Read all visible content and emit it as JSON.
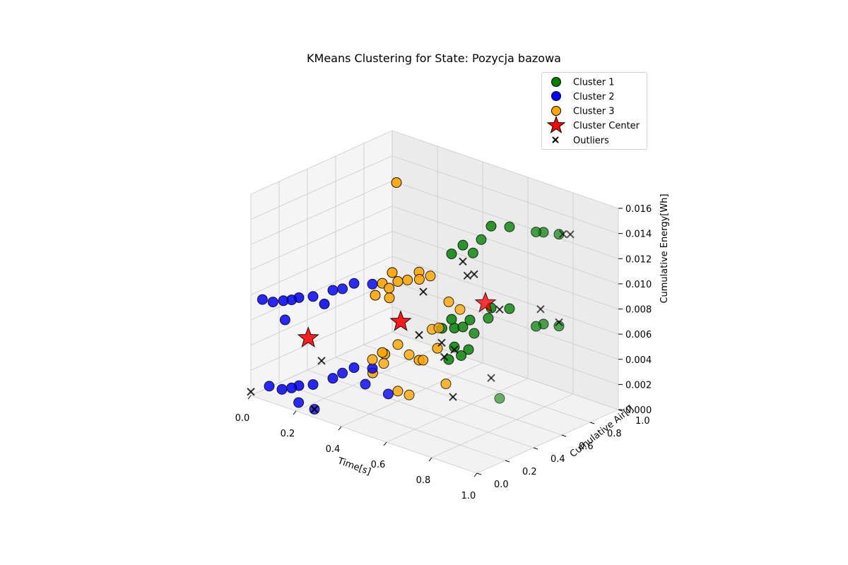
{
  "chart_data": {
    "type": "scatter",
    "projection": "3d",
    "title": "KMeans Clustering for State: Pozycja bazowa",
    "xlabel": "Time[s]",
    "ylabel": "Cumulative Air[l]",
    "zlabel": "Cumulative Energy[Wh]",
    "xlim": [
      0.0,
      1.0
    ],
    "ylim": [
      0.0,
      1.0
    ],
    "zlim": [
      0.0,
      0.016
    ],
    "xticks": [
      "0.0",
      "0.2",
      "0.4",
      "0.6",
      "0.8",
      "1.0"
    ],
    "yticks": [
      "0.0",
      "0.2",
      "0.4",
      "0.6",
      "0.8",
      "1.0"
    ],
    "zticks": [
      "0.000",
      "0.002",
      "0.004",
      "0.006",
      "0.008",
      "0.010",
      "0.012",
      "0.014",
      "0.016"
    ],
    "grid": true,
    "legend_position": "top-right",
    "series": [
      {
        "name": "Cluster 1",
        "marker": "circle",
        "color": "#008000",
        "points": [
          [
            0.75,
            0.98,
            0.0125
          ],
          [
            0.7,
            0.95,
            0.0125
          ],
          [
            0.68,
            0.93,
            0.0125
          ],
          [
            0.55,
            0.95,
            0.012
          ],
          [
            0.5,
            0.9,
            0.012
          ],
          [
            0.55,
            0.75,
            0.012
          ],
          [
            0.5,
            0.7,
            0.0115
          ],
          [
            0.52,
            0.74,
            0.0108
          ],
          [
            0.45,
            0.7,
            0.0105
          ],
          [
            0.75,
            0.98,
            0.0052
          ],
          [
            0.7,
            0.95,
            0.0052
          ],
          [
            0.68,
            0.93,
            0.005
          ],
          [
            0.55,
            0.95,
            0.0055
          ],
          [
            0.5,
            0.9,
            0.0055
          ],
          [
            0.55,
            0.8,
            0.0055
          ],
          [
            0.5,
            0.75,
            0.0053
          ],
          [
            0.45,
            0.7,
            0.0053
          ],
          [
            0.5,
            0.7,
            0.005
          ],
          [
            0.55,
            0.7,
            0.0048
          ],
          [
            0.45,
            0.72,
            0.0045
          ],
          [
            0.42,
            0.68,
            0.0045
          ],
          [
            0.45,
            0.72,
            0.003
          ],
          [
            0.5,
            0.74,
            0.003
          ],
          [
            0.48,
            0.72,
            0.0025
          ],
          [
            0.45,
            0.68,
            0.0022
          ],
          [
            0.85,
            0.4,
            0.003
          ]
        ]
      },
      {
        "name": "Cluster 2",
        "marker": "circle",
        "color": "#0000ff",
        "points": [
          [
            0.02,
            0.05,
            0.0075
          ],
          [
            0.06,
            0.06,
            0.0075
          ],
          [
            0.1,
            0.07,
            0.0078
          ],
          [
            0.13,
            0.08,
            0.008
          ],
          [
            0.15,
            0.1,
            0.0082
          ],
          [
            0.2,
            0.12,
            0.0085
          ],
          [
            0.25,
            0.18,
            0.009
          ],
          [
            0.28,
            0.2,
            0.0092
          ],
          [
            0.3,
            0.25,
            0.0095
          ],
          [
            0.35,
            0.3,
            0.0095
          ],
          [
            0.12,
            0.05,
            0.0065
          ],
          [
            0.2,
            0.2,
            0.0075
          ],
          [
            0.05,
            0.05,
            0.0008
          ],
          [
            0.1,
            0.06,
            0.0008
          ],
          [
            0.13,
            0.08,
            0.001
          ],
          [
            0.15,
            0.1,
            0.0012
          ],
          [
            0.2,
            0.12,
            0.0015
          ],
          [
            0.25,
            0.18,
            0.002
          ],
          [
            0.28,
            0.2,
            0.0025
          ],
          [
            0.3,
            0.25,
            0.0028
          ],
          [
            0.35,
            0.3,
            0.0028
          ],
          [
            0.18,
            0.05,
            0.0003
          ],
          [
            0.25,
            0.05,
            0.0002
          ],
          [
            0.35,
            0.25,
            0.0018
          ],
          [
            0.42,
            0.3,
            0.0012
          ]
        ]
      },
      {
        "name": "Cluster 3",
        "marker": "circle",
        "color": "#ffa500",
        "points": [
          [
            0.3,
            0.55,
            0.016
          ],
          [
            0.4,
            0.55,
            0.0095
          ],
          [
            0.45,
            0.55,
            0.0095
          ],
          [
            0.42,
            0.52,
            0.0092
          ],
          [
            0.38,
            0.5,
            0.009
          ],
          [
            0.35,
            0.48,
            0.0088
          ],
          [
            0.3,
            0.52,
            0.009
          ],
          [
            0.3,
            0.45,
            0.0085
          ],
          [
            0.33,
            0.45,
            0.0083
          ],
          [
            0.3,
            0.4,
            0.0078
          ],
          [
            0.35,
            0.42,
            0.0078
          ],
          [
            0.5,
            0.6,
            0.0075
          ],
          [
            0.55,
            0.6,
            0.0072
          ],
          [
            0.55,
            0.45,
            0.0065
          ],
          [
            0.52,
            0.45,
            0.0062
          ],
          [
            0.4,
            0.4,
            0.0045
          ],
          [
            0.45,
            0.4,
            0.004
          ],
          [
            0.4,
            0.3,
            0.0035
          ],
          [
            0.35,
            0.3,
            0.0035
          ],
          [
            0.4,
            0.55,
            0.0025
          ],
          [
            0.48,
            0.45,
            0.0035
          ],
          [
            0.3,
            0.45,
            0.003
          ],
          [
            0.28,
            0.5,
            0.0025
          ],
          [
            0.45,
            0.6,
            0.0035
          ],
          [
            0.4,
            0.4,
            0.0008
          ],
          [
            0.45,
            0.4,
            0.0008
          ],
          [
            0.32,
            0.35,
            0.002
          ],
          [
            0.55,
            0.5,
            0.0018
          ]
        ]
      },
      {
        "name": "Cluster Center",
        "marker": "star",
        "color": "#ff0000",
        "points": [
          [
            0.55,
            0.78,
            0.0068
          ],
          [
            0.35,
            0.5,
            0.0055
          ],
          [
            0.16,
            0.15,
            0.0048
          ]
        ]
      },
      {
        "name": "Outliers",
        "marker": "x",
        "color": "#000000",
        "points": [
          [
            0.8,
            0.98,
            0.0128
          ],
          [
            0.78,
            0.96,
            0.0128
          ],
          [
            0.75,
            0.98,
            0.0055
          ],
          [
            0.55,
            0.7,
            0.0095
          ],
          [
            0.52,
            0.7,
            0.0092
          ],
          [
            0.6,
            0.8,
            0.0065
          ],
          [
            0.75,
            0.85,
            0.0072
          ],
          [
            0.5,
            0.7,
            0.0102
          ],
          [
            0.45,
            0.5,
            0.0085
          ],
          [
            0.5,
            0.55,
            0.0045
          ],
          [
            0.4,
            0.55,
            0.0045
          ],
          [
            0.48,
            0.6,
            0.003
          ],
          [
            0.5,
            0.64,
            0.0035
          ],
          [
            0.55,
            0.55,
            0.0005
          ],
          [
            0.25,
            0.1,
            0.0038
          ],
          [
            0.25,
            0.05,
            0.0002
          ],
          [
            0.25,
            0.05,
            0.0002
          ],
          [
            0.0,
            0.0,
            0.0003
          ],
          [
            0.75,
            0.5,
            0.0035
          ]
        ]
      }
    ]
  }
}
